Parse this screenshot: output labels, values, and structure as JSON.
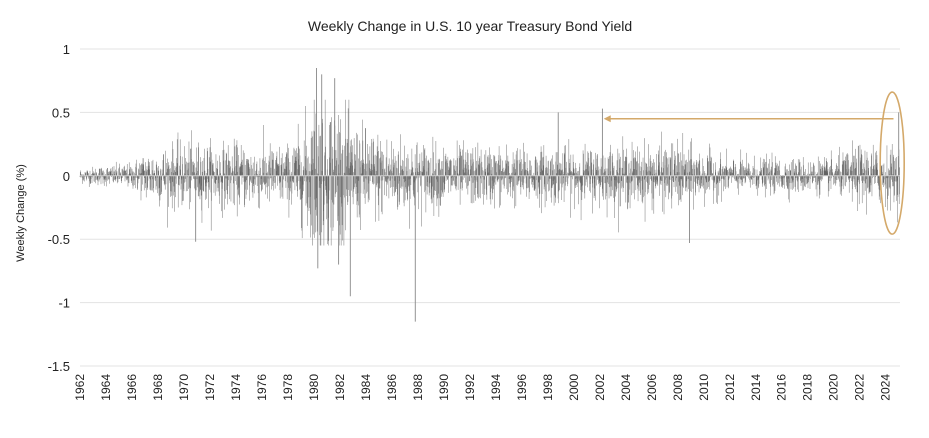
{
  "chart_data": {
    "type": "bar",
    "title": "Weekly Change in U.S. 10 year Treasury Bond Yield",
    "xlabel": "",
    "ylabel": "Weekly Change (%)",
    "ylim": [
      -1.5,
      1
    ],
    "yticks": [
      1,
      0.5,
      0,
      -0.5,
      -1,
      -1.5
    ],
    "ytick_labels": [
      "1",
      "0.5",
      "0",
      "-0.5",
      "-1",
      "-1.5"
    ],
    "xlim": [
      1962,
      2025.1
    ],
    "xticks": [
      "1962",
      "1964",
      "1966",
      "1968",
      "1970",
      "1972",
      "1974",
      "1976",
      "1978",
      "1980",
      "1982",
      "1984",
      "1986",
      "1988",
      "1990",
      "1992",
      "1994",
      "1996",
      "1998",
      "2000",
      "2002",
      "2004",
      "2006",
      "2008",
      "2010",
      "2012",
      "2014",
      "2016",
      "2018",
      "2020",
      "2022",
      "2024"
    ],
    "grid": "horizontal",
    "series_color": "#555555",
    "notable_points": [
      {
        "x": 1980.2,
        "y": 0.85
      },
      {
        "x": 1980.6,
        "y": 0.8
      },
      {
        "x": 1981.6,
        "y": 0.77
      },
      {
        "x": 1980.3,
        "y": -0.73
      },
      {
        "x": 1981.9,
        "y": -0.7
      },
      {
        "x": 1982.8,
        "y": -0.95
      },
      {
        "x": 1987.8,
        "y": -1.15
      },
      {
        "x": 1970.9,
        "y": -0.52
      },
      {
        "x": 1998.8,
        "y": 0.5
      },
      {
        "x": 2002.2,
        "y": 0.53
      },
      {
        "x": 2008.9,
        "y": -0.53
      },
      {
        "x": 2025.0,
        "y": 0.5
      }
    ],
    "weekly_std_by_year": [
      {
        "year": 1962,
        "std": 0.03
      },
      {
        "year": 1966,
        "std": 0.05
      },
      {
        "year": 1967,
        "std": 0.1
      },
      {
        "year": 1970,
        "std": 0.13
      },
      {
        "year": 1978,
        "std": 0.12
      },
      {
        "year": 1979,
        "std": 0.18
      },
      {
        "year": 1980,
        "std": 0.32
      },
      {
        "year": 1982,
        "std": 0.3
      },
      {
        "year": 1983,
        "std": 0.2
      },
      {
        "year": 1985,
        "std": 0.17
      },
      {
        "year": 1990,
        "std": 0.12
      },
      {
        "year": 2000,
        "std": 0.11
      },
      {
        "year": 2008,
        "std": 0.13
      },
      {
        "year": 2012,
        "std": 0.07
      },
      {
        "year": 2020,
        "std": 0.07
      },
      {
        "year": 2022,
        "std": 0.12
      },
      {
        "year": 2025.1,
        "std": 0.11
      }
    ],
    "annotation": {
      "type": "arrow-and-ellipse",
      "color": "#d4a96a",
      "arrow_from_x": 2024.6,
      "arrow_to_x": 2002.3,
      "arrow_y": 0.45,
      "ellipse_center_x": 2024.5,
      "ellipse_center_y": 0.1,
      "ellipse_y_top": 0.66,
      "ellipse_y_bottom": -0.46
    }
  }
}
